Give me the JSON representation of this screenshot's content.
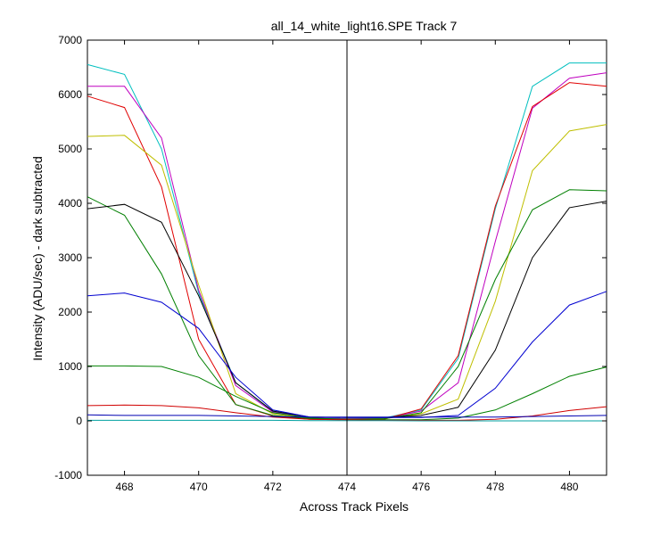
{
  "chart_data": {
    "type": "line",
    "title": "all_14_white_light16.SPE   Track 7",
    "xlabel": "Across Track Pixels",
    "ylabel": "Intensity (ADU/sec) - dark subtracted",
    "xlim": [
      467,
      481
    ],
    "ylim": [
      -1000,
      7000
    ],
    "xticks": [
      468,
      470,
      472,
      474,
      476,
      478,
      480
    ],
    "yticks": [
      -1000,
      0,
      1000,
      2000,
      3000,
      4000,
      5000,
      6000,
      7000
    ],
    "grid": false,
    "legend": "none",
    "marker_line_x": 474,
    "x": [
      467,
      468,
      469,
      470,
      471,
      472,
      473,
      474,
      475,
      476,
      477,
      478,
      479,
      480,
      481
    ],
    "series": [
      {
        "color": "#00BFBF",
        "values": [
          6550,
          6370,
          5000,
          2350,
          700,
          170,
          50,
          40,
          50,
          200,
          1150,
          3900,
          6150,
          6580,
          6580
        ]
      },
      {
        "color": "#BF00BF",
        "values": [
          6150,
          6150,
          5200,
          2400,
          650,
          160,
          50,
          40,
          45,
          180,
          700,
          3300,
          5750,
          6300,
          6400
        ]
      },
      {
        "color": "#E00000",
        "values": [
          5970,
          5760,
          4300,
          1500,
          300,
          90,
          30,
          20,
          30,
          220,
          1200,
          3950,
          5780,
          6220,
          6150
        ]
      },
      {
        "color": "#BFBF00",
        "values": [
          5230,
          5250,
          4700,
          2500,
          500,
          130,
          40,
          30,
          40,
          130,
          400,
          2200,
          4600,
          5330,
          5450
        ]
      },
      {
        "color": "#007F00",
        "values": [
          4120,
          3780,
          2700,
          1200,
          300,
          100,
          40,
          30,
          40,
          150,
          1000,
          2600,
          3880,
          4250,
          4230
        ]
      },
      {
        "color": "#000000",
        "values": [
          3900,
          3980,
          3650,
          2300,
          700,
          180,
          70,
          60,
          60,
          100,
          250,
          1300,
          3000,
          3920,
          4040
        ]
      },
      {
        "color": "#0000D0",
        "values": [
          2300,
          2350,
          2180,
          1700,
          800,
          200,
          70,
          60,
          60,
          60,
          100,
          600,
          1450,
          2130,
          2380
        ]
      },
      {
        "color": "#008000",
        "values": [
          1010,
          1010,
          1000,
          800,
          450,
          150,
          50,
          30,
          20,
          20,
          50,
          200,
          500,
          820,
          990
        ]
      },
      {
        "color": "#D00000",
        "values": [
          280,
          290,
          280,
          240,
          150,
          70,
          30,
          20,
          10,
          10,
          10,
          30,
          90,
          190,
          260
        ]
      },
      {
        "color": "#0000B0",
        "values": [
          110,
          100,
          100,
          100,
          90,
          80,
          70,
          70,
          70,
          70,
          70,
          70,
          80,
          90,
          100
        ]
      },
      {
        "color": "#00A0A0",
        "values": [
          10,
          10,
          10,
          10,
          10,
          10,
          5,
          5,
          5,
          0,
          0,
          0,
          0,
          0,
          0
        ]
      }
    ]
  }
}
